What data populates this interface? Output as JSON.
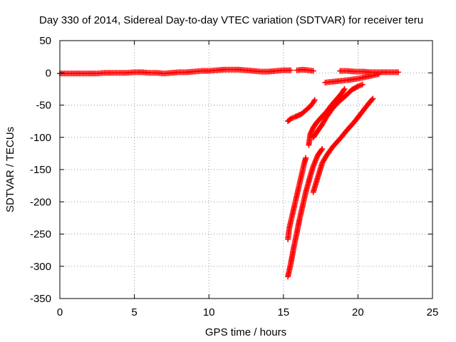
{
  "chart_data": {
    "type": "scatter",
    "title": "Day 330 of 2014, Sidereal Day-to-day VTEC variation (SDTVAR) for receiver teru",
    "xlabel": "GPS time / hours",
    "ylabel": "SDTVAR / TECUs",
    "xlim": [
      0,
      25
    ],
    "ylim": [
      -350,
      50
    ],
    "xticks": [
      0,
      5,
      10,
      15,
      20,
      25
    ],
    "yticks": [
      50,
      0,
      -50,
      -100,
      -150,
      -200,
      -250,
      -300,
      -350
    ],
    "grid": true,
    "legend": "none",
    "marker": "plus",
    "color": "#ff0000",
    "series": [
      {
        "values": [
          [
            0.0,
            -1
          ],
          [
            0.5,
            -1
          ],
          [
            1.0,
            -1
          ],
          [
            1.5,
            -1
          ],
          [
            2.0,
            -1
          ],
          [
            2.5,
            -1
          ],
          [
            3.0,
            0
          ],
          [
            3.5,
            0
          ],
          [
            4.0,
            0
          ],
          [
            4.5,
            0
          ],
          [
            5.0,
            1
          ],
          [
            5.5,
            1
          ],
          [
            6.0,
            0
          ],
          [
            6.5,
            0
          ],
          [
            7.0,
            -1
          ],
          [
            7.5,
            0
          ],
          [
            8.0,
            1
          ],
          [
            8.5,
            1
          ],
          [
            9.0,
            2
          ],
          [
            9.5,
            3
          ],
          [
            10.0,
            3
          ],
          [
            10.5,
            4
          ],
          [
            11.0,
            5
          ],
          [
            11.5,
            5
          ],
          [
            12.0,
            5
          ],
          [
            12.5,
            4
          ],
          [
            13.0,
            3
          ],
          [
            13.5,
            2
          ],
          [
            14.0,
            2
          ],
          [
            14.5,
            3
          ],
          [
            15.0,
            4
          ],
          [
            15.5,
            4
          ]
        ]
      },
      {
        "values": [
          [
            15.9,
            4
          ],
          [
            16.3,
            5
          ],
          [
            16.7,
            4
          ],
          [
            17.0,
            3
          ]
        ]
      },
      {
        "values": [
          [
            18.8,
            3
          ],
          [
            19.3,
            3
          ],
          [
            19.8,
            2
          ],
          [
            20.3,
            2
          ],
          [
            20.8,
            1
          ],
          [
            21.3,
            1
          ],
          [
            21.8,
            1
          ],
          [
            22.3,
            1
          ],
          [
            22.7,
            1
          ]
        ]
      },
      {
        "values": [
          [
            17.8,
            -15
          ],
          [
            18.6,
            -13
          ],
          [
            19.4,
            -11
          ],
          [
            20.0,
            -9
          ],
          [
            20.6,
            -6
          ],
          [
            21.0,
            -4
          ],
          [
            21.4,
            -2
          ]
        ]
      },
      {
        "values": [
          [
            15.3,
            -75
          ],
          [
            15.5,
            -71
          ],
          [
            15.8,
            -68
          ],
          [
            16.2,
            -64
          ],
          [
            16.5,
            -58
          ],
          [
            16.8,
            -52
          ],
          [
            17.0,
            -46
          ],
          [
            17.1,
            -42
          ]
        ]
      },
      {
        "values": [
          [
            15.3,
            -258
          ],
          [
            15.4,
            -240
          ],
          [
            15.6,
            -220
          ],
          [
            15.8,
            -200
          ],
          [
            16.0,
            -180
          ],
          [
            16.2,
            -160
          ],
          [
            16.4,
            -140
          ],
          [
            16.5,
            -132
          ]
        ]
      },
      {
        "values": [
          [
            15.3,
            -316
          ],
          [
            15.5,
            -295
          ],
          [
            15.7,
            -270
          ],
          [
            15.9,
            -248
          ],
          [
            16.1,
            -225
          ],
          [
            16.3,
            -205
          ],
          [
            16.5,
            -185
          ],
          [
            16.8,
            -160
          ],
          [
            17.0,
            -145
          ],
          [
            17.3,
            -128
          ],
          [
            17.6,
            -118
          ]
        ]
      },
      {
        "values": [
          [
            16.7,
            -112
          ],
          [
            16.8,
            -95
          ],
          [
            17.0,
            -85
          ],
          [
            17.2,
            -78
          ],
          [
            17.5,
            -70
          ],
          [
            17.9,
            -60
          ],
          [
            18.3,
            -48
          ],
          [
            18.6,
            -40
          ],
          [
            18.9,
            -32
          ],
          [
            19.1,
            -25
          ]
        ]
      },
      {
        "values": [
          [
            17.0,
            -100
          ],
          [
            17.3,
            -90
          ],
          [
            17.6,
            -80
          ],
          [
            17.9,
            -68
          ],
          [
            18.3,
            -55
          ],
          [
            18.7,
            -45
          ],
          [
            19.2,
            -35
          ],
          [
            19.6,
            -26
          ],
          [
            20.0,
            -21
          ],
          [
            20.3,
            -18
          ]
        ]
      },
      {
        "values": [
          [
            17.0,
            -185
          ],
          [
            17.2,
            -170
          ],
          [
            17.4,
            -155
          ],
          [
            17.6,
            -140
          ],
          [
            17.9,
            -128
          ],
          [
            18.3,
            -115
          ],
          [
            18.8,
            -102
          ],
          [
            19.3,
            -88
          ],
          [
            19.8,
            -75
          ],
          [
            20.3,
            -60
          ],
          [
            20.7,
            -48
          ],
          [
            21.0,
            -40
          ]
        ]
      }
    ]
  }
}
